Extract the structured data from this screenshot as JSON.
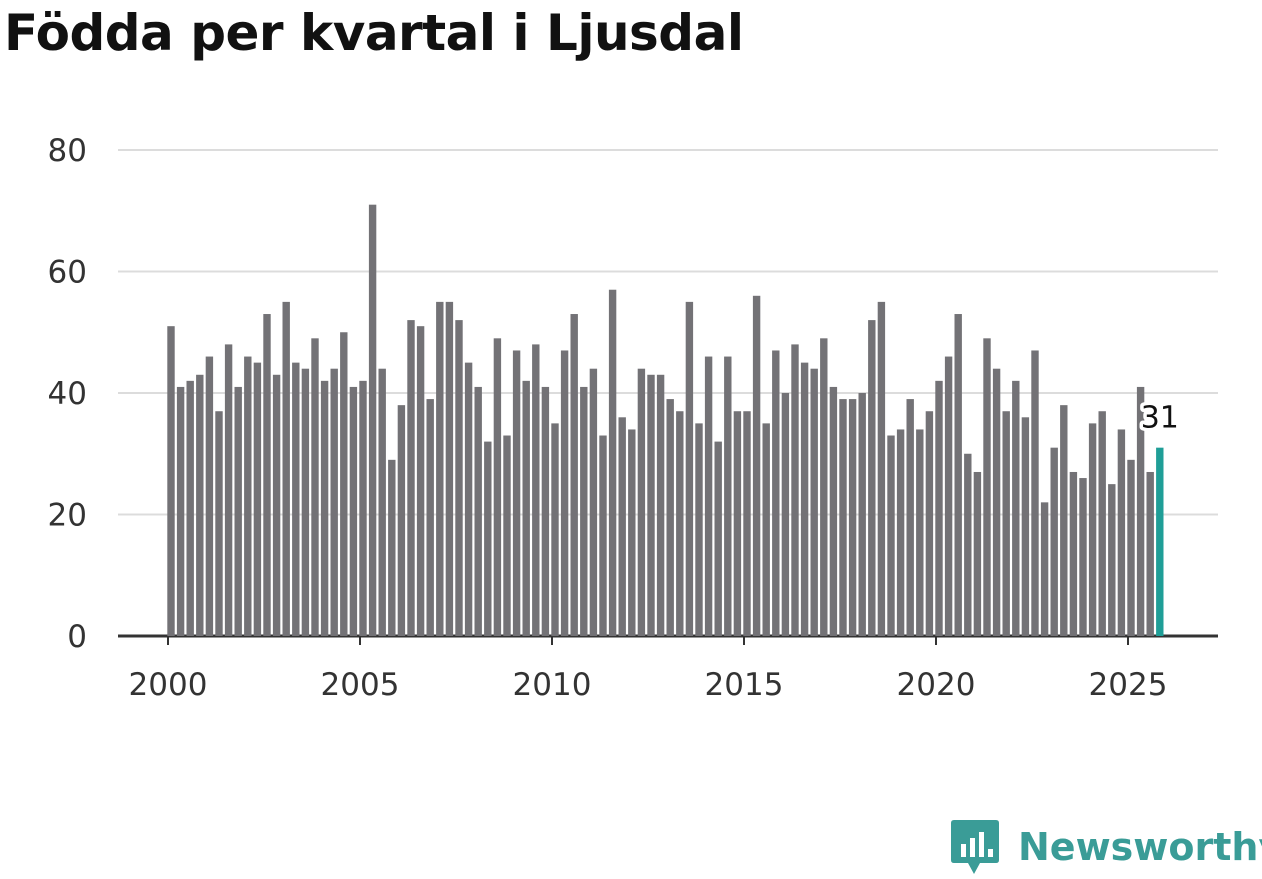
{
  "title": "Födda per kvartal i Ljusdal",
  "brand": {
    "name": "Newsworthy",
    "icon": "newsworthy-logo-icon",
    "color": "#3a9c97"
  },
  "chart_data": {
    "type": "bar",
    "title": "Födda per kvartal i Ljusdal",
    "xlabel": "",
    "ylabel": "",
    "ylim": [
      0,
      80
    ],
    "yticks": [
      "0",
      "20",
      "40",
      "60",
      "80"
    ],
    "xticks": [
      "2000",
      "2005",
      "2010",
      "2015",
      "2020",
      "2025"
    ],
    "grid": true,
    "bar_color": "#737276",
    "highlight_color": "#1f9e97",
    "annotation": {
      "label": "31",
      "period": "2025 Q4"
    },
    "categories": [
      "2000 Q1",
      "2000 Q2",
      "2000 Q3",
      "2000 Q4",
      "2001 Q1",
      "2001 Q2",
      "2001 Q3",
      "2001 Q4",
      "2002 Q1",
      "2002 Q2",
      "2002 Q3",
      "2002 Q4",
      "2003 Q1",
      "2003 Q2",
      "2003 Q3",
      "2003 Q4",
      "2004 Q1",
      "2004 Q2",
      "2004 Q3",
      "2004 Q4",
      "2005 Q1",
      "2005 Q2",
      "2005 Q3",
      "2005 Q4",
      "2006 Q1",
      "2006 Q2",
      "2006 Q3",
      "2006 Q4",
      "2007 Q1",
      "2007 Q2",
      "2007 Q3",
      "2007 Q4",
      "2008 Q1",
      "2008 Q2",
      "2008 Q3",
      "2008 Q4",
      "2009 Q1",
      "2009 Q2",
      "2009 Q3",
      "2009 Q4",
      "2010 Q1",
      "2010 Q2",
      "2010 Q3",
      "2010 Q4",
      "2011 Q1",
      "2011 Q2",
      "2011 Q3",
      "2011 Q4",
      "2012 Q1",
      "2012 Q2",
      "2012 Q3",
      "2012 Q4",
      "2013 Q1",
      "2013 Q2",
      "2013 Q3",
      "2013 Q4",
      "2014 Q1",
      "2014 Q2",
      "2014 Q3",
      "2014 Q4",
      "2015 Q1",
      "2015 Q2",
      "2015 Q3",
      "2015 Q4",
      "2016 Q1",
      "2016 Q2",
      "2016 Q3",
      "2016 Q4",
      "2017 Q1",
      "2017 Q2",
      "2017 Q3",
      "2017 Q4",
      "2018 Q1",
      "2018 Q2",
      "2018 Q3",
      "2018 Q4",
      "2019 Q1",
      "2019 Q2",
      "2019 Q3",
      "2019 Q4",
      "2020 Q1",
      "2020 Q2",
      "2020 Q3",
      "2020 Q4",
      "2021 Q1",
      "2021 Q2",
      "2021 Q3",
      "2021 Q4",
      "2022 Q1",
      "2022 Q2",
      "2022 Q3",
      "2022 Q4",
      "2023 Q1",
      "2023 Q2",
      "2023 Q3",
      "2023 Q4",
      "2024 Q1",
      "2024 Q2",
      "2024 Q3",
      "2024 Q4",
      "2025 Q1",
      "2025 Q2",
      "2025 Q3",
      "2025 Q4"
    ],
    "values": [
      51,
      41,
      42,
      43,
      46,
      37,
      48,
      41,
      46,
      45,
      53,
      43,
      55,
      45,
      44,
      49,
      42,
      44,
      50,
      41,
      42,
      71,
      44,
      29,
      38,
      52,
      51,
      39,
      55,
      55,
      52,
      45,
      41,
      32,
      49,
      33,
      47,
      42,
      48,
      41,
      35,
      47,
      53,
      41,
      44,
      33,
      57,
      36,
      34,
      44,
      43,
      43,
      39,
      37,
      55,
      35,
      46,
      32,
      46,
      37,
      37,
      56,
      35,
      47,
      40,
      48,
      45,
      44,
      49,
      41,
      39,
      39,
      40,
      52,
      55,
      33,
      34,
      39,
      34,
      37,
      42,
      46,
      53,
      30,
      27,
      49,
      44,
      37,
      42,
      36,
      47,
      22,
      31,
      38,
      27,
      26,
      35,
      37,
      25,
      34,
      29,
      41,
      27,
      31
    ]
  }
}
